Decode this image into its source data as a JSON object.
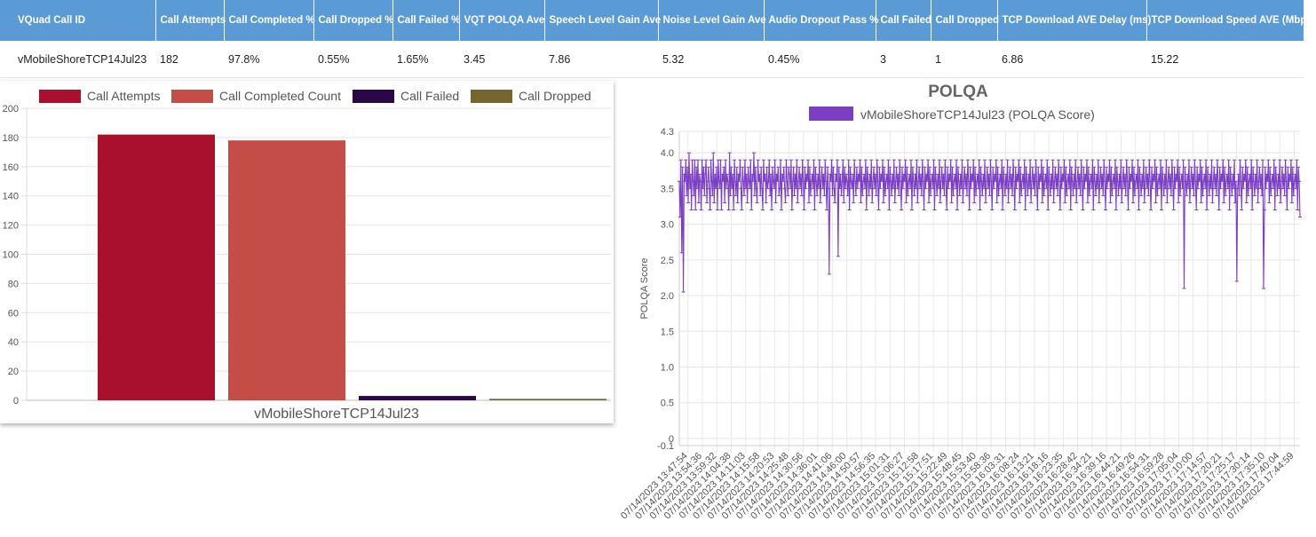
{
  "table": {
    "headers": [
      "VQuad Call ID",
      "Call Attempts",
      "Call Completed %",
      "Call Dropped %",
      "Call Failed %",
      "VQT POLQA Ave",
      "Speech Level Gain Ave",
      "Noise Level Gain Ave",
      "Audio Dropout Pass %",
      "Call Failed",
      "Call Dropped",
      "TCP Download AVE Delay (ms)",
      "TCP Download Speed AVE (Mbps)"
    ],
    "rows": [
      [
        "vMobileShoreTCP14Jul23",
        "182",
        "97.8%",
        "0.55%",
        "1.65%",
        "3.45",
        "7.86",
        "5.32",
        "0.45%",
        "3",
        "1",
        "6.86",
        "15.22"
      ]
    ]
  },
  "chart_data": [
    {
      "type": "bar",
      "title": "",
      "categories": [
        "vMobileShoreTCP14Jul23"
      ],
      "xlabel": "vMobileShoreTCP14Jul23",
      "ylabel": "",
      "ylim": [
        0,
        200
      ],
      "yticks": [
        0,
        20,
        40,
        60,
        80,
        100,
        120,
        140,
        160,
        180,
        200
      ],
      "legend_position": "top",
      "grid": true,
      "series": [
        {
          "name": "Call Attempts",
          "values": [
            182
          ],
          "color": "#a8102e"
        },
        {
          "name": "Call Completed Count",
          "values": [
            178
          ],
          "color": "#c44d48"
        },
        {
          "name": "Call Failed",
          "values": [
            3
          ],
          "color": "#2a0845"
        },
        {
          "name": "Call Dropped",
          "values": [
            1
          ],
          "color": "#76652c"
        }
      ]
    },
    {
      "type": "line",
      "title": "POLQA",
      "ylabel": "POLQA Score",
      "xlabel": "",
      "ylim": [
        -0.1,
        4.3
      ],
      "yticks": [
        -0.1,
        0,
        0.5,
        1.0,
        1.5,
        2.0,
        2.5,
        3.0,
        3.5,
        4.0,
        4.3
      ],
      "ytick_labels": [
        "-0.1",
        "0",
        "0.5",
        "1.0",
        "1.5",
        "2.0",
        "2.5",
        "3.0",
        "3.5",
        "4.0",
        "4.3"
      ],
      "legend_position": "top",
      "grid": true,
      "x_tick_labels": [
        "07/14/2023 13:47:54",
        "07/14/2023 13:54:36",
        "07/14/2023 13:59:32",
        "07/14/2023 14:04:38",
        "07/14/2023 14:11:03",
        "07/14/2023 14:15:58",
        "07/14/2023 14:20:53",
        "07/14/2023 14:25:48",
        "07/14/2023 14:30:56",
        "07/14/2023 14:36:01",
        "07/14/2023 14:41:06",
        "07/14/2023 14:46:00",
        "07/14/2023 14:50:57",
        "07/14/2023 14:56:35",
        "07/14/2023 15:01:31",
        "07/14/2023 15:06:27",
        "07/14/2023 15:12:58",
        "07/14/2023 15:17:51",
        "07/14/2023 15:22:49",
        "07/14/2023 15:48:45",
        "07/14/2023 15:53:40",
        "07/14/2023 15:58:36",
        "07/14/2023 16:03:31",
        "07/14/2023 16:08:24",
        "07/14/2023 16:13:21",
        "07/14/2023 16:18:16",
        "07/14/2023 16:23:35",
        "07/14/2023 16:28:42",
        "07/14/2023 16:34:21",
        "07/14/2023 16:39:16",
        "07/14/2023 16:44:21",
        "07/14/2023 16:49:26",
        "07/14/2023 16:54:31",
        "07/14/2023 16:59:28",
        "07/14/2023 17:05:04",
        "07/14/2023 17:10:00",
        "07/14/2023 17:14:57",
        "07/14/2023 17:20:21",
        "07/14/2023 17:25:17",
        "07/14/2023 17:30:14",
        "07/14/2023 17:35:10",
        "07/14/2023 17:40:04",
        "07/14/2023 17:44:59"
      ],
      "series": [
        {
          "name": "vMobileShoreTCP14Jul23 (POLQA Score)",
          "color": "#7b3fc4",
          "values": [
            3.6,
            3.1,
            3.9,
            2.6,
            3.8,
            2.05,
            3.7,
            3.6,
            3.9,
            3.4,
            3.8,
            3.3,
            4.0,
            3.5,
            3.7,
            3.2,
            3.9,
            3.6,
            3.4,
            3.9,
            3.2,
            3.8,
            3.5,
            3.9,
            3.3,
            3.7,
            3.6,
            3.2,
            3.9,
            3.5,
            3.8,
            3.4,
            3.7,
            3.9,
            3.3,
            3.6,
            3.8,
            3.5,
            3.2,
            3.9,
            3.6,
            3.4,
            4.0,
            3.3,
            3.7,
            3.5,
            3.8,
            3.2,
            3.9,
            3.6,
            3.5,
            3.9,
            3.2,
            3.7,
            3.6,
            3.8,
            3.3,
            3.9,
            3.5,
            3.7,
            3.6,
            3.2,
            4.0,
            3.4,
            3.8,
            3.5,
            3.7,
            3.2,
            3.9,
            3.6,
            3.4,
            3.8,
            3.3,
            3.7,
            3.6,
            3.9,
            3.5,
            3.2,
            3.8,
            3.6,
            3.4,
            3.9,
            3.5,
            3.7,
            3.3,
            3.8,
            3.6,
            3.5,
            3.9,
            3.2,
            3.7,
            3.6,
            4.0,
            3.4,
            3.8,
            3.5,
            3.3,
            3.9,
            3.6,
            3.7,
            3.4,
            3.8,
            3.5,
            3.2,
            3.9,
            3.6,
            3.7,
            3.3,
            3.8,
            3.5,
            3.6,
            3.9,
            3.4,
            3.7,
            3.2,
            3.8,
            3.6,
            3.5,
            3.9,
            3.3,
            3.7,
            3.6,
            3.8,
            3.4,
            3.5,
            3.9,
            3.2,
            3.7,
            3.6,
            3.8,
            3.5,
            3.3,
            3.9,
            3.6,
            3.4,
            3.8,
            3.7,
            3.5,
            3.9,
            3.2,
            3.6,
            3.8,
            3.4,
            3.7,
            3.5,
            3.9,
            3.3,
            3.6,
            3.8,
            3.5,
            3.7,
            3.4,
            3.9,
            3.6,
            3.2,
            3.8,
            3.5,
            3.7,
            3.6,
            3.9,
            3.3,
            3.8,
            3.4,
            3.6,
            3.7,
            3.5,
            3.9,
            3.2,
            3.8,
            3.6,
            3.4,
            3.7,
            3.5,
            3.9,
            3.3,
            3.6,
            3.8,
            3.5,
            3.7,
            3.4,
            3.9,
            3.6,
            3.2,
            3.8,
            3.5,
            2.3,
            3.7,
            3.6,
            3.9,
            3.4,
            3.8,
            3.5,
            3.3,
            3.7,
            3.6,
            3.9,
            2.55,
            3.8,
            3.5,
            3.7,
            3.4,
            3.6,
            3.9,
            3.3,
            3.8,
            3.5,
            3.7,
            3.6,
            3.4,
            3.9,
            3.2,
            3.8,
            3.6,
            3.5,
            3.7,
            3.3,
            3.9,
            3.6,
            3.4,
            3.8,
            3.5,
            3.7,
            3.6,
            3.9,
            3.3,
            3.8,
            3.4,
            3.6,
            3.7,
            3.5,
            3.9,
            3.2,
            3.8,
            3.6,
            3.4,
            3.7,
            3.5,
            3.9,
            3.3,
            3.6,
            3.8,
            3.5,
            3.7,
            3.4,
            3.9,
            3.6,
            3.2,
            3.8,
            3.5,
            3.7,
            3.6,
            3.9,
            3.3,
            3.8,
            3.4,
            3.6,
            3.7,
            3.5,
            3.9,
            3.2,
            3.8,
            3.6,
            3.4,
            3.7,
            3.5,
            3.9,
            3.3,
            3.6,
            3.8,
            3.5,
            3.7,
            3.4,
            3.9,
            3.6,
            3.2,
            3.8,
            3.5,
            3.7,
            3.6,
            3.9,
            3.3,
            3.8,
            3.4,
            3.6,
            3.7,
            3.5,
            3.9,
            3.2,
            3.8,
            3.6,
            3.4,
            3.7,
            3.5,
            3.9,
            3.3,
            3.6,
            3.8,
            3.5,
            3.7,
            3.4,
            3.9,
            3.6,
            3.2,
            3.8,
            3.5,
            3.7,
            3.6,
            3.9,
            3.3,
            3.8,
            3.4,
            3.6,
            3.7,
            3.5,
            3.9,
            3.2,
            3.8,
            3.6,
            3.4,
            3.7,
            3.5,
            3.9,
            3.3,
            3.6,
            3.8,
            3.5,
            3.7,
            3.4,
            3.9,
            3.6,
            3.2,
            3.8,
            3.5,
            3.7,
            3.6,
            3.9,
            3.3,
            3.8,
            3.4,
            3.6,
            3.7,
            3.5,
            3.9,
            3.2,
            3.8,
            3.6,
            3.4,
            3.7,
            3.5,
            3.9,
            3.3,
            3.6,
            3.8,
            3.5,
            3.7,
            3.4,
            3.9,
            3.6,
            3.2,
            3.8,
            3.5,
            3.7,
            3.6,
            3.9,
            3.3,
            3.8,
            3.4,
            3.6,
            3.7,
            3.5,
            3.9,
            3.2,
            3.8,
            3.6,
            3.4,
            3.7,
            3.5,
            3.9,
            3.3,
            3.6,
            3.8,
            3.5,
            3.7,
            3.4,
            3.9,
            3.6,
            3.2,
            3.8,
            3.5,
            3.7,
            3.6,
            3.9,
            3.3,
            3.8,
            3.4,
            3.6,
            3.7,
            3.5,
            3.9,
            3.2,
            3.8,
            3.6,
            3.4,
            3.7,
            3.5,
            3.9,
            3.3,
            3.6,
            3.8,
            3.5,
            3.7,
            3.4,
            3.9,
            3.6,
            3.2,
            3.8,
            3.5,
            3.7,
            3.6,
            3.9,
            3.3,
            3.8,
            3.4,
            3.6,
            3.7,
            3.5,
            3.9,
            3.2,
            3.8,
            3.6,
            3.4,
            3.7,
            3.5,
            3.9,
            3.3,
            3.6,
            3.8,
            3.5,
            3.7,
            3.4,
            3.9,
            3.6,
            3.2,
            3.8,
            3.5,
            3.7,
            3.6,
            3.9,
            3.3,
            3.8,
            3.4,
            3.6,
            3.7,
            3.5,
            3.9,
            3.2,
            3.8,
            3.6,
            3.4,
            3.7,
            3.5,
            3.9,
            3.3,
            3.6,
            3.8,
            3.5,
            3.7,
            3.4,
            3.9,
            3.6,
            3.2,
            3.8,
            3.5,
            3.7,
            3.6,
            3.9,
            3.3,
            3.8,
            3.4,
            3.6,
            3.7,
            3.5,
            3.9,
            3.2,
            3.8,
            3.6,
            3.4,
            3.7,
            3.5,
            3.9,
            3.3,
            3.6,
            3.8,
            3.5,
            3.7,
            3.4,
            3.9,
            3.6,
            3.2,
            3.8,
            3.5,
            3.7,
            3.6,
            3.9,
            3.3,
            3.8,
            3.4,
            3.6,
            3.7,
            3.5,
            3.9,
            3.2,
            3.8,
            3.6,
            3.4,
            3.7,
            3.5,
            3.9,
            3.3,
            3.6,
            3.8,
            3.5,
            3.7,
            3.4,
            3.9,
            3.6,
            3.2,
            3.8,
            3.5,
            3.7,
            3.6,
            3.9,
            3.3,
            3.8,
            3.4,
            3.6,
            3.7,
            3.5,
            3.9,
            3.2,
            3.8,
            3.6,
            3.4,
            3.7,
            3.5,
            3.9,
            3.3,
            3.6,
            3.8,
            3.5,
            3.7,
            3.4,
            3.9,
            3.6,
            3.2,
            3.8,
            3.5,
            3.7,
            3.6,
            3.9,
            3.3,
            3.8,
            3.4,
            3.6,
            3.7,
            3.5,
            3.9,
            3.2,
            3.8,
            3.6,
            3.4,
            3.7,
            3.5,
            3.9,
            3.3,
            3.6,
            3.8,
            3.5,
            3.7,
            3.4,
            3.9,
            3.6,
            3.2,
            3.8,
            3.5,
            3.7,
            3.6,
            3.9,
            3.3,
            3.8,
            3.4,
            3.6,
            3.7,
            3.5,
            3.9,
            3.2,
            3.8,
            3.6,
            3.4,
            3.7,
            3.5,
            3.9,
            3.3,
            3.6,
            3.8,
            3.5,
            3.7,
            3.4,
            3.9,
            3.6,
            3.2,
            3.8,
            3.5,
            3.7,
            3.6,
            3.9,
            3.3,
            3.8,
            3.4,
            3.6,
            3.7,
            3.5,
            3.9,
            2.1,
            3.8,
            3.6,
            3.4,
            3.7,
            3.5,
            3.9,
            3.3,
            3.6,
            3.8,
            3.5,
            3.7,
            3.4,
            3.9,
            3.6,
            3.2,
            3.8,
            3.5,
            3.7,
            3.6,
            3.9,
            3.3,
            3.8,
            3.4,
            3.6,
            3.7,
            3.5,
            3.9,
            3.2,
            3.8,
            3.6,
            3.4,
            3.7,
            3.5,
            3.9,
            3.3,
            3.6,
            3.8,
            3.5,
            3.7,
            3.4,
            3.9,
            3.6,
            3.2,
            3.8,
            3.5,
            3.7,
            3.6,
            3.9,
            3.3,
            3.8,
            3.4,
            3.6,
            3.7,
            3.5,
            3.9,
            3.2,
            3.8,
            3.6,
            3.4,
            3.7,
            3.5,
            3.9,
            3.3,
            3.6,
            2.2,
            3.5,
            3.7,
            3.4,
            3.9,
            3.6,
            3.2,
            3.8,
            3.5,
            3.7,
            3.6,
            3.9,
            3.3,
            3.8,
            3.4,
            3.6,
            3.7,
            3.5,
            3.9,
            3.2,
            3.8,
            3.6,
            3.4,
            3.7,
            3.5,
            3.9,
            3.3,
            3.6,
            3.8,
            3.5,
            3.7,
            3.4,
            3.9,
            2.1,
            3.2,
            3.8,
            3.5,
            3.7,
            3.6,
            3.9,
            3.3,
            3.8,
            3.4,
            3.6,
            3.7,
            3.5,
            3.9,
            3.2,
            3.8,
            3.6,
            3.4,
            3.7,
            3.5,
            3.9,
            3.3,
            3.6,
            3.8,
            3.5,
            3.7,
            3.4,
            3.9,
            3.6,
            3.2,
            3.8,
            3.5,
            3.7,
            3.6,
            3.9,
            3.3,
            3.8,
            3.4,
            3.6,
            3.7,
            3.5,
            3.9,
            3.2,
            3.8,
            3.6,
            3.1
          ]
        }
      ]
    }
  ]
}
